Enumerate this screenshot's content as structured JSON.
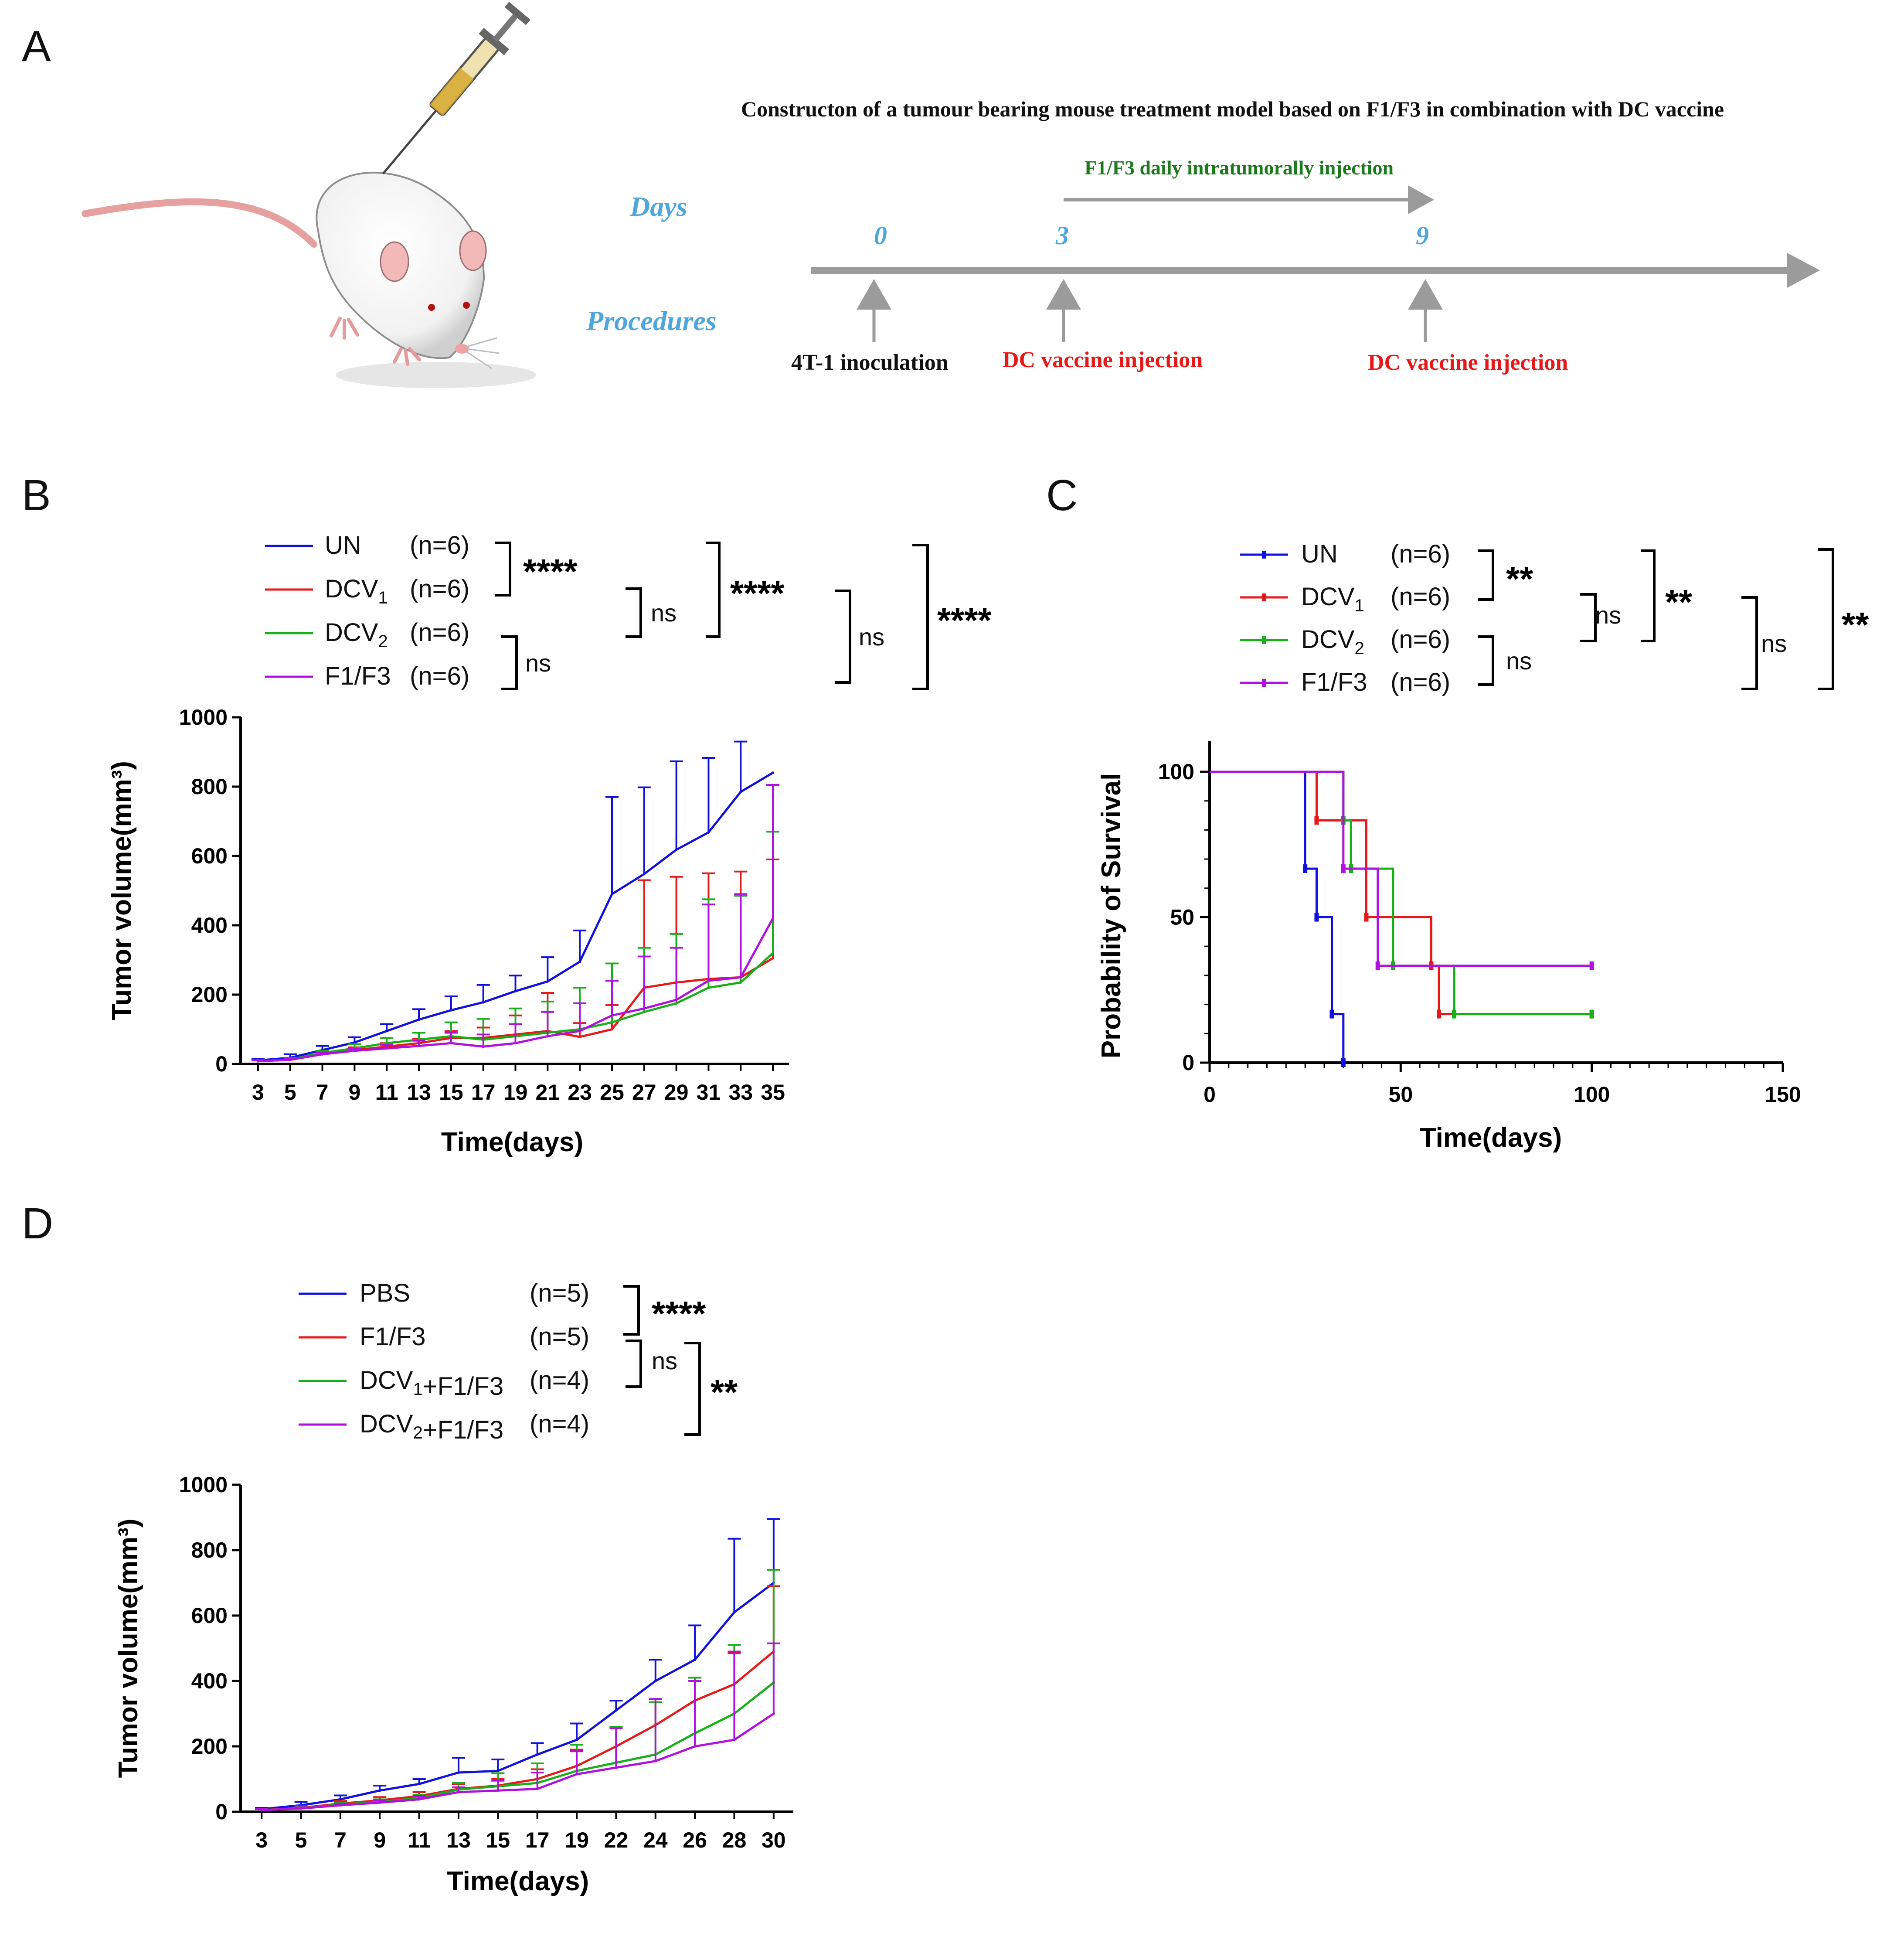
{
  "panels": {
    "a": "A",
    "b": "B",
    "c": "C",
    "d": "D"
  },
  "colors": {
    "blue": "#1010e0",
    "red": "#e81818",
    "green": "#18b018",
    "purple": "#b010e0",
    "arrow": "#9b9b9b",
    "daysBlue": "#4ea6dc",
    "darkGreen": "#1a7a1a"
  },
  "schematic": {
    "title": "Constructon of a tumour bearing mouse treatment model based on F1/F3 in combination with  DC vaccine",
    "days_label": "Days",
    "procedures_label": "Procedures",
    "f1f3_label": "F1/F3 daily intratumorally injection",
    "day_marks": [
      "0",
      "3",
      "9"
    ],
    "procedures": [
      "4T-1 inoculation",
      "DC vaccine injection",
      "DC vaccine injection"
    ]
  },
  "legendB": {
    "entries": [
      {
        "name": "UN",
        "n": "(n=6)"
      },
      {
        "name": "DCV",
        "sub": "1",
        "n": "(n=6)"
      },
      {
        "name": "DCV",
        "sub": "2",
        "n": "(n=6)"
      },
      {
        "name": "F1/F3",
        "n": "(n=6)"
      }
    ],
    "sig": [
      "****",
      "ns",
      "****",
      "ns",
      "****",
      "ns"
    ]
  },
  "legendC": {
    "entries": [
      {
        "name": "UN",
        "n": "(n=6)"
      },
      {
        "name": "DCV",
        "sub": "1",
        "n": "(n=6)"
      },
      {
        "name": "DCV",
        "sub": "2",
        "n": "(n=6)"
      },
      {
        "name": "F1/F3",
        "n": "(n=6)"
      }
    ],
    "sig": [
      "**",
      "ns",
      "**",
      "ns",
      "**",
      "ns"
    ]
  },
  "legendD": {
    "entries": [
      {
        "name": "PBS",
        "n": "(n=5)"
      },
      {
        "name": "F1/F3",
        "n": "(n=5)"
      },
      {
        "name": "DCV",
        "sub": "1",
        "suffix": "+F1/F3",
        "n": "(n=4)"
      },
      {
        "name": "DCV",
        "sub": "2",
        "suffix": "+F1/F3",
        "n": "(n=4)"
      }
    ],
    "sig": [
      "****",
      "ns",
      "**"
    ]
  },
  "chart_data": [
    {
      "id": "B",
      "type": "line",
      "xlabel": "Time(days)",
      "ylabel": "Tumor volume(mm³)",
      "ylim": [
        0,
        1000
      ],
      "yticks": [
        0,
        200,
        400,
        600,
        800,
        1000
      ],
      "categories": [
        "3",
        "5",
        "7",
        "9",
        "11",
        "13",
        "15",
        "17",
        "19",
        "21",
        "23",
        "25",
        "27",
        "29",
        "31",
        "33",
        "35"
      ],
      "series": [
        {
          "name": "UN",
          "color": "#1010e0",
          "values": [
            10,
            18,
            40,
            62,
            95,
            128,
            155,
            178,
            210,
            238,
            295,
            490,
            548,
            618,
            668,
            785,
            840
          ],
          "err": [
            5,
            10,
            12,
            15,
            20,
            30,
            40,
            50,
            45,
            70,
            90,
            280,
            250,
            255,
            215,
            145,
            0
          ]
        },
        {
          "name": "DCV1",
          "color": "#e81818",
          "values": [
            8,
            12,
            30,
            40,
            50,
            60,
            75,
            75,
            85,
            95,
            78,
            100,
            220,
            235,
            245,
            250,
            305
          ],
          "err": [
            3,
            5,
            6,
            8,
            10,
            12,
            20,
            30,
            55,
            110,
            40,
            70,
            310,
            305,
            305,
            305,
            285
          ]
        },
        {
          "name": "DCV2",
          "color": "#18b018",
          "values": [
            8,
            13,
            32,
            45,
            60,
            70,
            80,
            70,
            80,
            90,
            100,
            120,
            150,
            175,
            220,
            235,
            320
          ],
          "err": [
            3,
            5,
            6,
            12,
            15,
            20,
            40,
            60,
            80,
            90,
            120,
            170,
            185,
            200,
            255,
            250,
            350
          ]
        },
        {
          "name": "F1/F3",
          "color": "#b010e0",
          "values": [
            8,
            12,
            28,
            38,
            45,
            52,
            60,
            50,
            60,
            80,
            95,
            140,
            160,
            185,
            240,
            250,
            420
          ],
          "err": [
            3,
            4,
            5,
            6,
            10,
            15,
            30,
            35,
            55,
            70,
            80,
            100,
            150,
            150,
            220,
            240,
            385
          ]
        }
      ]
    },
    {
      "id": "C",
      "type": "line",
      "xlabel": "Time(days)",
      "ylabel": "Probability of Survival",
      "xlim": [
        0,
        150
      ],
      "ylim": [
        0,
        100
      ],
      "xticks": [
        0,
        50,
        100,
        150
      ],
      "yticks": [
        0,
        50,
        100
      ],
      "series": [
        {
          "name": "UN",
          "color": "#1010e0",
          "steps": [
            [
              0,
              100
            ],
            [
              25,
              66.7
            ],
            [
              28,
              50
            ],
            [
              32,
              16.7
            ],
            [
              35,
              0
            ]
          ]
        },
        {
          "name": "DCV1",
          "color": "#e81818",
          "steps": [
            [
              0,
              100
            ],
            [
              28,
              83.3
            ],
            [
              41,
              50
            ],
            [
              58,
              33.3
            ],
            [
              60,
              16.7
            ],
            [
              100,
              16.7
            ]
          ]
        },
        {
          "name": "DCV2",
          "color": "#18b018",
          "steps": [
            [
              0,
              100
            ],
            [
              35,
              83.3
            ],
            [
              37,
              66.7
            ],
            [
              48,
              33.3
            ],
            [
              64,
              16.7
            ],
            [
              100,
              16.7
            ]
          ]
        },
        {
          "name": "F1/F3",
          "color": "#b010e0",
          "steps": [
            [
              0,
              100
            ],
            [
              35,
              66.7
            ],
            [
              44,
              33.3
            ],
            [
              100,
              33.3
            ]
          ]
        }
      ]
    },
    {
      "id": "D",
      "type": "line",
      "xlabel": "Time(days)",
      "ylabel": "Tumor volume(mm³)",
      "ylim": [
        0,
        1000
      ],
      "yticks": [
        0,
        200,
        400,
        600,
        800,
        1000
      ],
      "categories": [
        "3",
        "5",
        "7",
        "9",
        "11",
        "13",
        "15",
        "17",
        "19",
        "22",
        "24",
        "26",
        "28",
        "30"
      ],
      "series": [
        {
          "name": "PBS",
          "color": "#1010e0",
          "values": [
            8,
            20,
            38,
            65,
            85,
            120,
            125,
            175,
            220,
            310,
            400,
            465,
            610,
            700
          ],
          "err": [
            4,
            10,
            12,
            15,
            15,
            45,
            35,
            35,
            50,
            30,
            65,
            105,
            225,
            195
          ]
        },
        {
          "name": "F1/F3",
          "color": "#e81818",
          "values": [
            5,
            12,
            25,
            35,
            48,
            70,
            80,
            100,
            140,
            200,
            265,
            340,
            390,
            490
          ],
          "err": [
            3,
            5,
            8,
            10,
            12,
            15,
            20,
            30,
            50,
            60,
            80,
            70,
            95,
            200
          ]
        },
        {
          "name": "DCV1+F1/F3",
          "color": "#18b018",
          "values": [
            5,
            10,
            22,
            30,
            42,
            68,
            78,
            88,
            125,
            150,
            175,
            240,
            300,
            395
          ],
          "err": [
            3,
            5,
            6,
            8,
            10,
            20,
            40,
            60,
            80,
            110,
            160,
            170,
            210,
            345
          ]
        },
        {
          "name": "DCV2+F1/F3",
          "color": "#b010e0",
          "values": [
            5,
            10,
            20,
            28,
            38,
            60,
            65,
            70,
            115,
            135,
            155,
            200,
            220,
            300
          ],
          "err": [
            3,
            4,
            5,
            8,
            10,
            15,
            30,
            50,
            70,
            120,
            190,
            200,
            270,
            215
          ]
        }
      ]
    }
  ]
}
